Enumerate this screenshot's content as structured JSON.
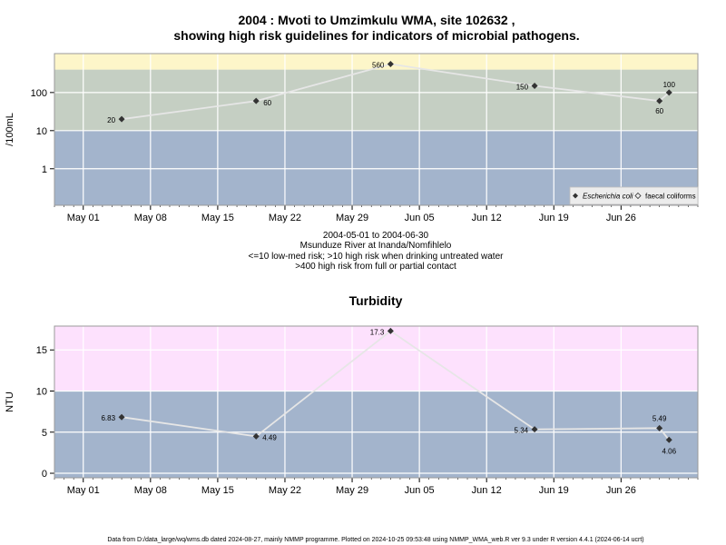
{
  "figure": {
    "title_line1": "2004 : Mvoti to Umzimkulu WMA, site 102632 ,",
    "title_line2": "showing high risk guidelines for indicators of microbial pathogens.",
    "footer": "Data from D:/data_large/wq/wms.db dated 2024-08-27, mainly NMMP programme. Plotted on 2024-10-25 09:53:48 using NMMP_WMA_web.R ver 9.3 under R version 4.4.1 (2024-06-14 ucrt)",
    "colors": {
      "blue_band": "#a3b4cc",
      "green_band": "#c5cfc3",
      "yellow_band": "#fdf6c9",
      "pink_band": "#fde1fd",
      "grid": "#ffffff",
      "line": "#e6e6e6",
      "marker": "#333333"
    }
  },
  "x_axis": {
    "ticks": [
      "May 01",
      "May 08",
      "May 15",
      "May 22",
      "May 29",
      "Jun 05",
      "Jun 12",
      "Jun 19",
      "Jun 26"
    ],
    "tick_dates": [
      "2004-05-01",
      "2004-05-08",
      "2004-05-15",
      "2004-05-22",
      "2004-05-29",
      "2004-06-05",
      "2004-06-12",
      "2004-06-19",
      "2004-06-26"
    ],
    "range": [
      "2004-04-28",
      "2004-07-04"
    ]
  },
  "microbial": {
    "ylabel": "/100mL",
    "yticks": [
      "1",
      "10",
      "100"
    ],
    "ytick_values": [
      1,
      10,
      100
    ],
    "scale": "log",
    "ylim": [
      0.11,
      1050
    ],
    "guideline_bands": [
      {
        "from": 0.11,
        "to": 10
      },
      {
        "from": 10,
        "to": 400
      },
      {
        "from": 400,
        "to": 1050
      }
    ],
    "caption_lines": [
      "2004-05-01 to 2004-06-30",
      "Msunduze River at Inanda/Nomfihlelo",
      "<=10 low-med risk; >10 high risk when drinking untreated water",
      ">400 high risk from full or partial contact"
    ],
    "legend": {
      "placement": "bottom-right",
      "ecoli": "Escherichia coli",
      "faecal": "faecal coliforms"
    }
  },
  "turbidity": {
    "title": "Turbidity",
    "ylabel": "NTU",
    "yticks": [
      "0",
      "5",
      "10",
      "15"
    ],
    "ytick_values": [
      0,
      5,
      10,
      15
    ],
    "ylim": [
      -0.55,
      17.9
    ],
    "guideline_bands": [
      {
        "from": -0.55,
        "to": 10
      },
      {
        "from": 10,
        "to": 17.9
      }
    ]
  },
  "chart_data": [
    {
      "type": "line",
      "series": [
        {
          "name": "Escherichia coli",
          "points": [
            {
              "x": "2004-05-05",
              "y": 20,
              "label": "20"
            },
            {
              "x": "2004-05-19",
              "y": 60,
              "label": "60"
            },
            {
              "x": "2004-06-02",
              "y": 560,
              "label": "560"
            },
            {
              "x": "2004-06-17",
              "y": 150,
              "label": "150"
            },
            {
              "x": "2004-06-30",
              "y": 60,
              "label": "60"
            },
            {
              "x": "2004-07-01",
              "y": 100,
              "label": "100"
            }
          ]
        }
      ]
    },
    {
      "type": "line",
      "title": "Turbidity",
      "ylabel": "NTU",
      "series": [
        {
          "points": [
            {
              "x": "2004-05-05",
              "y": 6.83,
              "label": "6.83"
            },
            {
              "x": "2004-05-19",
              "y": 4.49,
              "label": "4.49"
            },
            {
              "x": "2004-06-02",
              "y": 17.3,
              "label": "17.3"
            },
            {
              "x": "2004-06-17",
              "y": 5.34,
              "label": "5.34"
            },
            {
              "x": "2004-06-30",
              "y": 5.49,
              "label": "5.49"
            },
            {
              "x": "2004-07-01",
              "y": 4.06,
              "label": "4.06"
            }
          ]
        }
      ]
    }
  ]
}
